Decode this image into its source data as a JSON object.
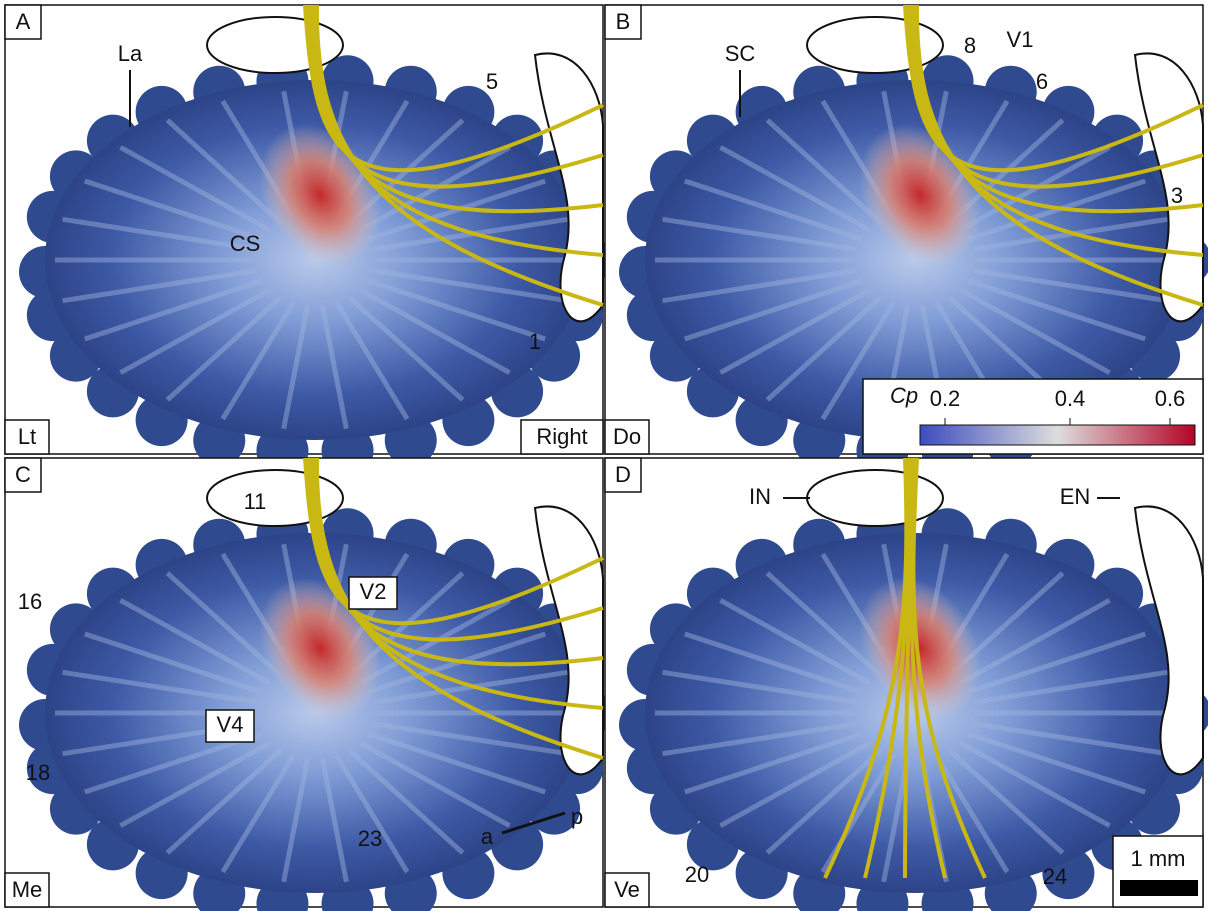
{
  "panels": [
    {
      "letter": "A",
      "view": "Lt",
      "labels": [
        "La",
        "CS",
        "5",
        "1"
      ],
      "orientation": "Right"
    },
    {
      "letter": "B",
      "view": "Do",
      "labels": [
        "SC",
        "8",
        "V1",
        "6",
        "3"
      ],
      "colorbar": {
        "title": "Cp",
        "ticks": [
          "0.2",
          "0.4",
          "0.6"
        ]
      }
    },
    {
      "letter": "C",
      "view": "Me",
      "labels": [
        "11",
        "16",
        "V2",
        "18",
        "V4",
        "23"
      ],
      "axis": {
        "anterior": "a",
        "posterior": "p"
      }
    },
    {
      "letter": "D",
      "view": "Ve",
      "labels": [
        "IN",
        "EN",
        "20",
        "24"
      ],
      "scale_bar": "1 mm"
    }
  ]
}
